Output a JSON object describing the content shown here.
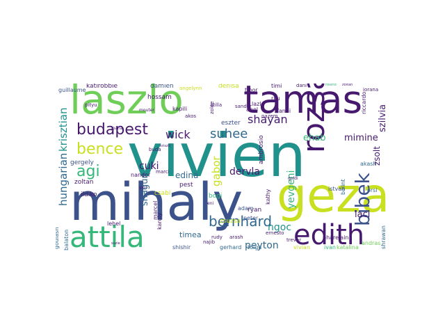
{
  "palette": {
    "purple": "#46196f",
    "indigo": "#3b528b",
    "blue": "#31688e",
    "teal": "#21918c",
    "green": "#35b779",
    "lime": "#6ece58",
    "yellow": "#c8e020"
  },
  "words": [
    "vivien",
    "mihaly",
    "laszlo",
    "tamas",
    "geza",
    "attila",
    "edith",
    "rozsa",
    "bibek",
    "budapest",
    "bence",
    "agi",
    "wick",
    "suhee",
    "shayan",
    "bernhard",
    "hungarian",
    "krisztian",
    "gabor",
    "yevgeni",
    "mimine",
    "ehab",
    "peyton",
    "ngoc",
    "laci",
    "szilvia",
    "zsolt",
    "dervla",
    "cuki",
    "edina",
    "shagun",
    "timea",
    "zoltan",
    "gergely",
    "ildiko",
    "csabi",
    "damien",
    "katirobbie",
    "hossam",
    "kapili",
    "eszter",
    "denisa",
    "fanni",
    "ambrosio",
    "pest",
    "bogi",
    "zsuzsa",
    "andras",
    "kathy",
    "ryan",
    "istvan",
    "balint",
    "akash",
    "orsi",
    "tolga",
    "shishir",
    "gerhard",
    "vivian",
    "ivan",
    "katalina",
    "pharelain",
    "shrawan",
    "goulash",
    "balaton",
    "marcel",
    "karoly",
    "adam",
    "peter",
    "nandor",
    "lehel",
    "tibor",
    "riju",
    "abel",
    "lazlo",
    "timi",
    "dani",
    "iorana",
    "riccardo",
    "roland",
    "guillaume",
    "pityu",
    "buda",
    "akos",
    "zolee",
    "angelynn",
    "sandor",
    "atilla",
    "rudy",
    "arash",
    "nazem",
    "trevor",
    "najib",
    "ernesto",
    "goldi",
    "marci",
    "eni",
    "joana",
    "zoltan",
    "mouter",
    "gabi",
    "kriszti",
    "suzie",
    "hungary"
  ]
}
